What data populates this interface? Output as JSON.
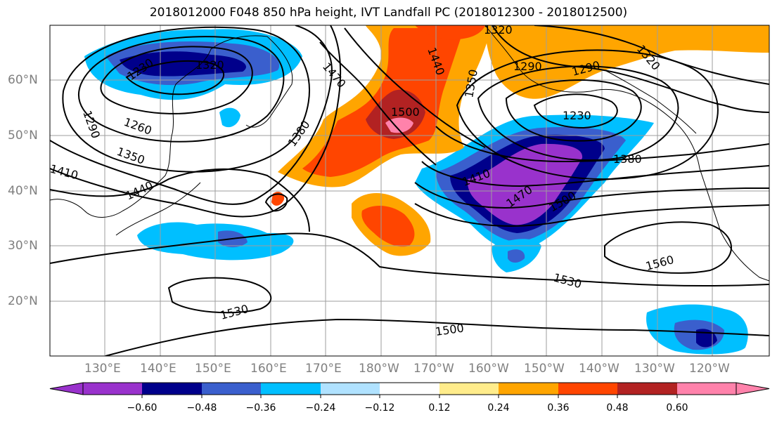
{
  "title": "2018012000 F048 850 hPa height, IVT Landfall PC (2018012300 - 2018012500)",
  "lat_labels": [
    "60°N",
    "50°N",
    "40°N",
    "30°N",
    "20°N"
  ],
  "lon_labels": [
    "130°E",
    "140°E",
    "150°E",
    "160°E",
    "170°E",
    "180°W",
    "170°W",
    "160°W",
    "150°W",
    "140°W",
    "130°W",
    "120°W"
  ],
  "contour_labels": [
    "1320",
    "1290",
    "1260",
    "1230",
    "1290",
    "1350",
    "1410",
    "1440",
    "1380",
    "1470",
    "1500",
    "1440",
    "1350",
    "1320",
    "1320",
    "1290",
    "1230",
    "1380",
    "1410",
    "1470",
    "1500",
    "1560",
    "1530",
    "1530",
    "1500"
  ],
  "colorbar": {
    "ticks": [
      "−0.60",
      "−0.48",
      "−0.36",
      "−0.24",
      "−0.12",
      "0.12",
      "0.24",
      "0.36",
      "0.48",
      "0.60"
    ],
    "colors": [
      "#9932cc",
      "#00008b",
      "#3a5fcd",
      "#00bfff",
      "#b0e2ff",
      "#ffffff",
      "#ffec8b",
      "#ffa500",
      "#ff4500",
      "#b22222",
      "#ff82ab"
    ]
  },
  "colors": {
    "lat_lon_labels": "#7f7f7f",
    "contours": "#000000",
    "grid": "#9e9e9e"
  }
}
